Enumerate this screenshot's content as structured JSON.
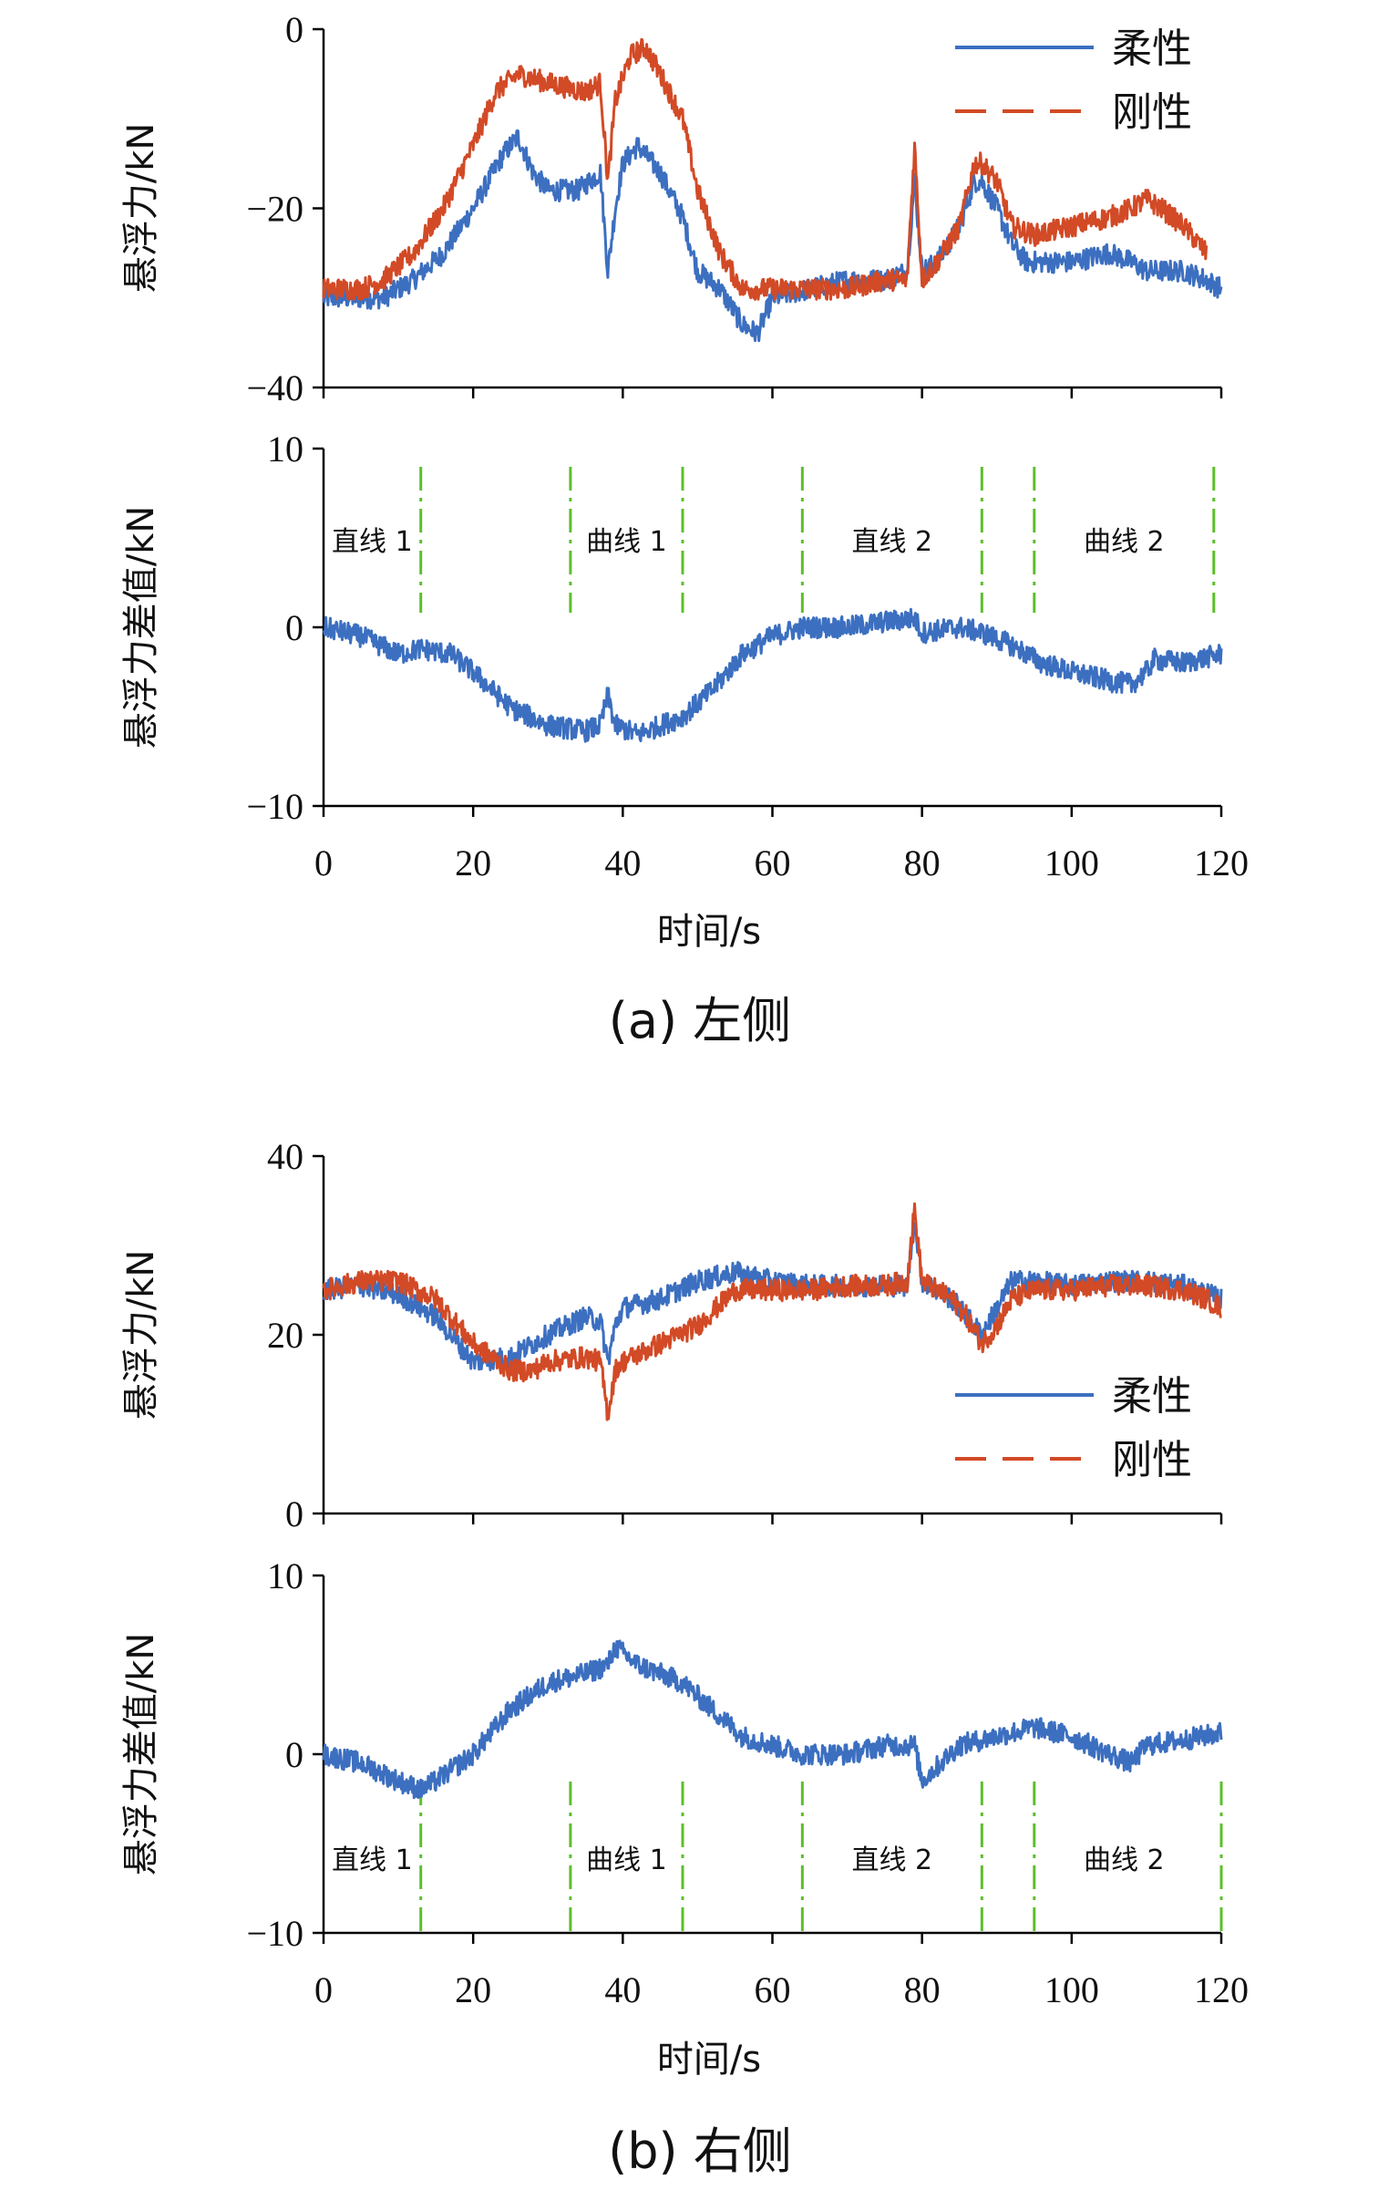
{
  "colors": {
    "flexible": "#3c6fc0",
    "rigid": "#d24a26",
    "segment_line": "#5cbf2a",
    "axis": "#000000"
  },
  "figure": {
    "caption_a": "(a) 左侧",
    "caption_b": "(b) 右侧",
    "x_label": "时间/s"
  },
  "chart_data": [
    {
      "id": "a_top",
      "type": "line",
      "ylabel": "悬浮力/kN",
      "xlim": [
        0,
        120
      ],
      "ylim": [
        -40,
        0
      ],
      "yticks": [
        -40,
        -20,
        0
      ],
      "ytick_labels": [
        "−40",
        "−20",
        "0"
      ],
      "legend": "top-right",
      "series": [
        {
          "name": "柔性",
          "style": "solid",
          "x": [
            0,
            5,
            8,
            12,
            16,
            20,
            24,
            26,
            28,
            30,
            34,
            37,
            38,
            39,
            40,
            42,
            45,
            48,
            50,
            53,
            56,
            58,
            60,
            65,
            70,
            75,
            78,
            79,
            80,
            82,
            85,
            87,
            88,
            90,
            92,
            94,
            96,
            100,
            105,
            108,
            110,
            115,
            118,
            120
          ],
          "y": [
            -30,
            -30,
            -30,
            -28,
            -25,
            -20,
            -14,
            -12,
            -16,
            -18,
            -18,
            -16,
            -27,
            -20,
            -15,
            -13,
            -16,
            -21,
            -27,
            -29,
            -33,
            -34,
            -30,
            -29,
            -28,
            -28,
            -27,
            -17,
            -27,
            -26,
            -22,
            -17,
            -17,
            -20,
            -24,
            -26,
            -26,
            -26,
            -25,
            -26,
            -27,
            -27,
            -28,
            -29
          ]
        },
        {
          "name": "刚性",
          "style": "dashed",
          "x": [
            0,
            5,
            8,
            12,
            16,
            20,
            23,
            26,
            30,
            35,
            37,
            38,
            39,
            41,
            43,
            45,
            48,
            50,
            53,
            56,
            60,
            65,
            70,
            75,
            78,
            79,
            80,
            82,
            85,
            87,
            88,
            90,
            92,
            95,
            100,
            105,
            108,
            110,
            112,
            115,
            118
          ],
          "y": [
            -29,
            -29,
            -28,
            -25,
            -20,
            -13,
            -7,
            -5,
            -6,
            -7,
            -6,
            -17,
            -8,
            -3,
            -2,
            -5,
            -10,
            -18,
            -25,
            -29,
            -29,
            -29,
            -29,
            -28,
            -28,
            -13,
            -28,
            -26,
            -22,
            -15,
            -15,
            -17,
            -22,
            -23,
            -22,
            -21,
            -20,
            -19,
            -20,
            -22,
            -25
          ]
        }
      ]
    },
    {
      "id": "a_bottom",
      "type": "line",
      "ylabel": "悬浮力差值/kN",
      "xlim": [
        0,
        120
      ],
      "ylim": [
        -10,
        10
      ],
      "yticks": [
        -10,
        0,
        10
      ],
      "ytick_labels": [
        "−10",
        "0",
        "10"
      ],
      "xticks": [
        0,
        20,
        40,
        60,
        80,
        100,
        120
      ],
      "series": [
        {
          "name": "",
          "style": "solid",
          "x": [
            0,
            5,
            10,
            13,
            17,
            20,
            25,
            30,
            35,
            37,
            38,
            39,
            42,
            48,
            52,
            56,
            60,
            64,
            70,
            75,
            79,
            80,
            85,
            88,
            92,
            96,
            100,
            105,
            108,
            110,
            111,
            115,
            120
          ],
          "y": [
            0,
            -0.5,
            -1.5,
            -1.2,
            -1.5,
            -2.5,
            -4.5,
            -5.5,
            -5.8,
            -5.5,
            -3.8,
            -5.5,
            -6,
            -5,
            -3.5,
            -1.5,
            -0.5,
            0,
            0,
            0.3,
            0.5,
            -0.3,
            0,
            -0.3,
            -1,
            -2,
            -2.5,
            -3,
            -3.2,
            -2.5,
            -1.8,
            -2,
            -1.5
          ]
        }
      ],
      "segment_x": [
        13,
        33,
        48,
        64,
        88,
        95,
        119
      ],
      "segment_labels": [
        {
          "text": "直线 1",
          "x": 6.5
        },
        {
          "text": "曲线 1",
          "x": 40.5
        },
        {
          "text": "直线 2",
          "x": 76
        },
        {
          "text": "曲线 2",
          "x": 107
        }
      ]
    },
    {
      "id": "b_top",
      "type": "line",
      "ylabel": "悬浮力/kN",
      "xlim": [
        0,
        120
      ],
      "ylim": [
        0,
        40
      ],
      "yticks": [
        0,
        20,
        40
      ],
      "ytick_labels": [
        "0",
        "20",
        "40"
      ],
      "legend": "right",
      "series": [
        {
          "name": "柔性",
          "style": "solid",
          "x": [
            0,
            5,
            10,
            15,
            20,
            25,
            30,
            35,
            37,
            38,
            39,
            40,
            45,
            50,
            55,
            60,
            65,
            70,
            75,
            78,
            79,
            80,
            84,
            86,
            88,
            90,
            92,
            95,
            100,
            105,
            110,
            115,
            120
          ],
          "y": [
            25,
            25.5,
            24.5,
            22,
            17,
            17.5,
            20,
            22,
            21.5,
            17,
            21,
            23,
            24,
            26,
            27,
            26,
            25.5,
            25.5,
            25.5,
            25.5,
            33,
            26,
            24,
            22,
            20,
            23,
            26,
            26,
            25.5,
            26,
            26,
            25.5,
            24
          ]
        },
        {
          "name": "刚性",
          "style": "dashed",
          "x": [
            0,
            5,
            10,
            15,
            20,
            25,
            28,
            30,
            35,
            37,
            38,
            39,
            40,
            45,
            50,
            55,
            60,
            65,
            70,
            75,
            78,
            79,
            80,
            84,
            86,
            88,
            90,
            92,
            95,
            100,
            105,
            110,
            115,
            118,
            120
          ],
          "y": [
            25,
            26,
            26,
            24,
            19,
            16,
            16,
            17,
            17.5,
            17,
            11,
            16,
            17,
            19,
            21,
            25,
            25,
            25,
            25.5,
            25.5,
            26,
            34,
            26,
            24,
            22,
            19,
            21,
            24,
            25,
            25,
            25.5,
            25.5,
            25,
            24,
            23
          ]
        }
      ]
    },
    {
      "id": "b_bottom",
      "type": "line",
      "ylabel": "悬浮力差值/kN",
      "xlim": [
        0,
        120
      ],
      "ylim": [
        -10,
        10
      ],
      "yticks": [
        -10,
        0,
        10
      ],
      "ytick_labels": [
        "−10",
        "0",
        "10"
      ],
      "xticks": [
        0,
        20,
        40,
        60,
        80,
        100,
        120
      ],
      "series": [
        {
          "name": "",
          "style": "solid",
          "x": [
            0,
            5,
            10,
            13,
            15,
            20,
            25,
            30,
            35,
            38,
            39,
            42,
            48,
            52,
            56,
            60,
            64,
            70,
            75,
            79,
            80,
            85,
            90,
            95,
            100,
            105,
            108,
            110,
            115,
            120
          ],
          "y": [
            0,
            -0.5,
            -1.5,
            -2,
            -1.5,
            0,
            2.5,
            4,
            4.5,
            5,
            6,
            5,
            4,
            2.5,
            1,
            0.5,
            0,
            0,
            0.5,
            0.5,
            -1.5,
            0.5,
            1,
            1.5,
            1,
            0,
            -0.5,
            0.5,
            0.8,
            1.2
          ]
        }
      ],
      "segment_x": [
        13,
        33,
        48,
        64,
        88,
        95,
        120
      ],
      "segment_labels": [
        {
          "text": "直线 1",
          "x": 6.5
        },
        {
          "text": "曲线 1",
          "x": 40.5
        },
        {
          "text": "直线 2",
          "x": 76
        },
        {
          "text": "曲线 2",
          "x": 107
        }
      ]
    }
  ],
  "xtick_labels": [
    "0",
    "20",
    "40",
    "60",
    "80",
    "100",
    "120"
  ]
}
